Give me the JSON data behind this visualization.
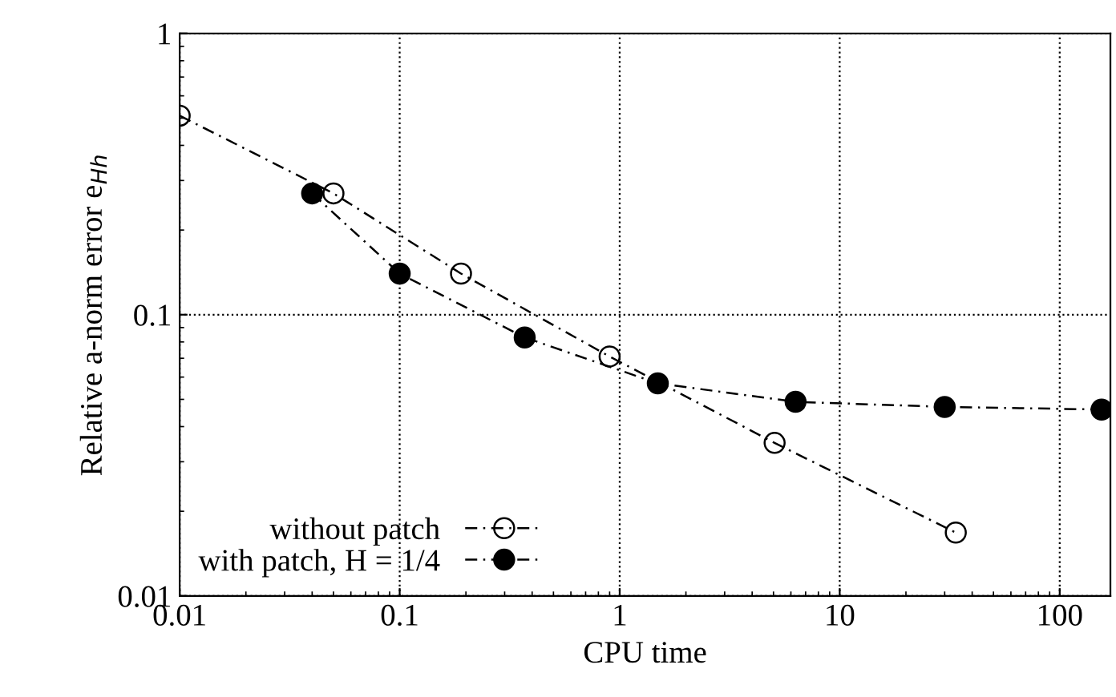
{
  "chart_data": {
    "type": "line",
    "xlabel": "CPU time",
    "ylabel": "Relative a-norm error e$_{Hh}$",
    "log": "xy",
    "xlim": [
      0.01,
      170
    ],
    "ylim": [
      0.01,
      1
    ],
    "xticks": [
      0.01,
      0.1,
      1,
      10,
      100
    ],
    "yticks": [
      0.01,
      0.1,
      1
    ],
    "grid": true,
    "legend": "bottom left",
    "marker": "circle",
    "line_style": "dashed",
    "series": [
      {
        "name": "without patch",
        "color": "#000000",
        "x": [
          0.01,
          0.05,
          0.19,
          0.9,
          5.06,
          33.7
        ],
        "values": [
          0.51,
          0.27,
          0.14,
          0.071,
          0.035,
          0.0168
        ]
      },
      {
        "name": "with patch, H = 1/4",
        "color": "#000000",
        "x": [
          0.04,
          0.1,
          0.37,
          1.49,
          6.3,
          30,
          155
        ],
        "values": [
          0.27,
          0.14,
          0.083,
          0.057,
          0.049,
          0.047,
          0.046
        ]
      }
    ]
  }
}
